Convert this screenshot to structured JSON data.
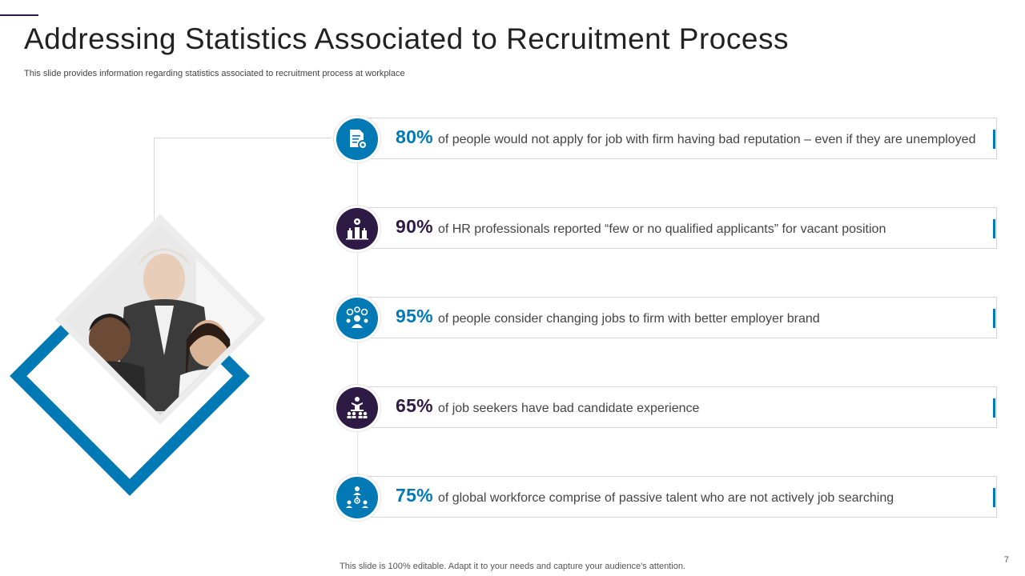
{
  "title": "Addressing Statistics Associated to Recruitment Process",
  "subtitle": "This slide provides information regarding statistics associated to recruitment process at workplace",
  "stats": [
    {
      "percent": "80%",
      "text": "of people would not apply for job with firm having bad reputation – even if they are unemployed",
      "color": "#0079b5",
      "icon": "document-gear-icon"
    },
    {
      "percent": "90%",
      "text": "of HR professionals reported “few or no qualified applicants” for vacant position",
      "color": "#2d1b45",
      "icon": "candidates-building-icon"
    },
    {
      "percent": "95%",
      "text": "of people consider changing jobs to firm with better employer brand",
      "color": "#0079b5",
      "icon": "person-ideas-icon"
    },
    {
      "percent": "65%",
      "text": "of job seekers have bad candidate experience",
      "color": "#2d1b45",
      "icon": "presenter-audience-icon"
    },
    {
      "percent": "75%",
      "text": "of global workforce comprise of passive talent who are not actively job searching",
      "color": "#0079b5",
      "icon": "team-network-icon"
    }
  ],
  "footer": "This slide is 100% editable. Adapt it to your needs and capture your audience's attention.",
  "page_number": "7",
  "colors": {
    "blue": "#0079b5",
    "purple": "#2d1b45"
  }
}
